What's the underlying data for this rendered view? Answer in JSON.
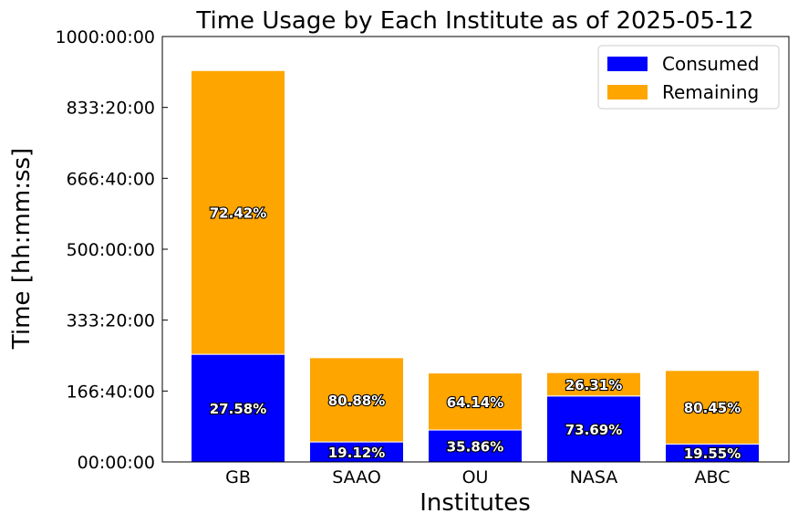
{
  "chart_data": {
    "type": "bar",
    "stacked": true,
    "title": "Time Usage by Each Institute as of 2025-05-12",
    "xlabel": "Institutes",
    "ylabel": "Time [hh:mm:ss]",
    "categories": [
      "GB",
      "SAAO",
      "OU",
      "NASA",
      "ABC"
    ],
    "ylim_hours": [
      0,
      1000
    ],
    "yticks_hours": [
      0,
      166.667,
      333.333,
      500,
      666.667,
      833.333,
      1000
    ],
    "ytick_labels": [
      "00:00:00",
      "166:40:00",
      "333:20:00",
      "500:00:00",
      "666:40:00",
      "833:20:00",
      "1000:00:00"
    ],
    "series": [
      {
        "name": "Consumed",
        "color": "#0000ff",
        "values_hours": [
          253,
          47,
          75,
          155,
          42
        ],
        "labels": [
          "27.58%",
          "19.12%",
          "35.86%",
          "73.69%",
          "19.55%"
        ]
      },
      {
        "name": "Remaining",
        "color": "#ffa500",
        "values_hours": [
          667,
          198,
          134,
          55,
          173
        ],
        "labels": [
          "72.42%",
          "80.88%",
          "64.14%",
          "26.31%",
          "80.45%"
        ]
      }
    ],
    "legend_position": "upper right",
    "grid": false
  }
}
